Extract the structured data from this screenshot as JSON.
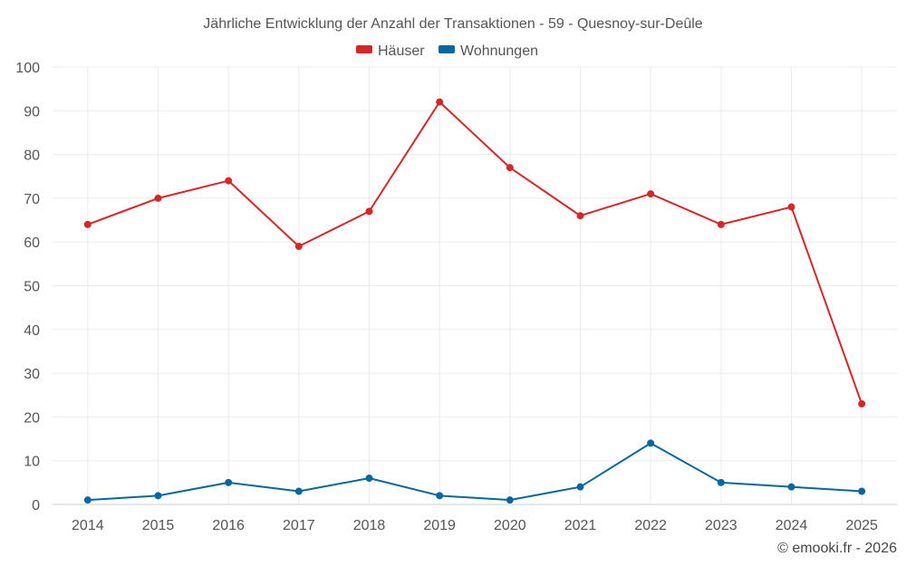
{
  "chart_data": {
    "type": "line",
    "title": "Jährliche Entwicklung der Anzahl der Transaktionen - 59 - Quesnoy-sur-Deûle",
    "xlabel": "",
    "ylabel": "",
    "ylim": [
      0,
      100
    ],
    "yticks": [
      "0",
      "10",
      "20",
      "30",
      "40",
      "50",
      "60",
      "70",
      "80",
      "90",
      "100"
    ],
    "categories": [
      "2014",
      "2015",
      "2016",
      "2017",
      "2018",
      "2019",
      "2020",
      "2021",
      "2022",
      "2023",
      "2024",
      "2025"
    ],
    "series": [
      {
        "name": "Häuser",
        "color": "#d62728",
        "values": [
          64,
          70,
          74,
          59,
          67,
          92,
          77,
          66,
          71,
          64,
          68,
          23
        ]
      },
      {
        "name": "Wohnungen",
        "color": "#08679c",
        "values": [
          1,
          2,
          5,
          3,
          6,
          2,
          1,
          4,
          14,
          5,
          4,
          3
        ]
      }
    ],
    "legend_position": "top-center",
    "grid": true
  },
  "credit": "© emooki.fr - 2026"
}
